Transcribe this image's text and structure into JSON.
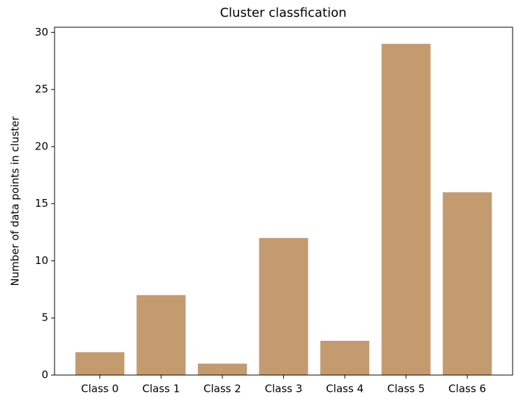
{
  "chart_data": {
    "type": "bar",
    "title": "Cluster classfication",
    "ylabel": "Number of data points in cluster",
    "categories": [
      "Class 0",
      "Class 1",
      "Class 2",
      "Class 3",
      "Class 4",
      "Class 5",
      "Class 6"
    ],
    "values": [
      2,
      7,
      1,
      12,
      3,
      29,
      16
    ],
    "color": "#c49a6f",
    "ylim": [
      0,
      30.45
    ],
    "yticks": [
      0,
      5,
      10,
      15,
      20,
      25,
      30
    ],
    "grid": false
  }
}
